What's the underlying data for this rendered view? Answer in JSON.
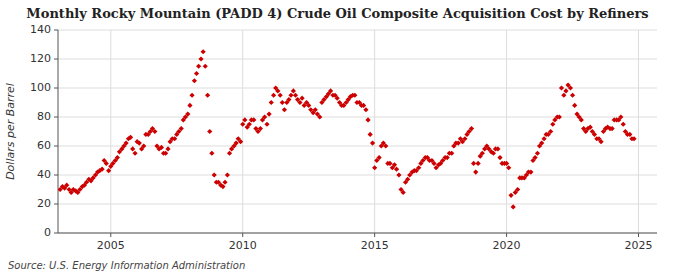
{
  "chart_data": {
    "type": "scatter",
    "title": "Monthly Rocky Mountain (PADD 4) Crude Oil Composite Acquisition Cost by Refiners",
    "ylabel": "Dollars per Barrel",
    "annotations": [
      "Source: U.S. Energy Information Administration"
    ],
    "color": "#CC0000",
    "marker": "diamond",
    "grid": true,
    "xlim": [
      2003.0,
      2025.7
    ],
    "xticks": [
      2005,
      2010,
      2015,
      2020,
      2025
    ],
    "ylim": [
      0,
      140
    ],
    "yticks": [
      0,
      20,
      40,
      60,
      80,
      100,
      120,
      140
    ],
    "x": [
      2003.08,
      2003.17,
      2003.25,
      2003.33,
      2003.42,
      2003.5,
      2003.58,
      2003.67,
      2003.75,
      2003.83,
      2003.92,
      2004.0,
      2004.08,
      2004.17,
      2004.25,
      2004.33,
      2004.42,
      2004.5,
      2004.58,
      2004.67,
      2004.75,
      2004.83,
      2004.92,
      2005.0,
      2005.08,
      2005.17,
      2005.25,
      2005.33,
      2005.42,
      2005.5,
      2005.58,
      2005.67,
      2005.75,
      2005.83,
      2005.92,
      2006.0,
      2006.08,
      2006.17,
      2006.25,
      2006.33,
      2006.42,
      2006.5,
      2006.58,
      2006.67,
      2006.75,
      2006.83,
      2006.92,
      2007.0,
      2007.08,
      2007.17,
      2007.25,
      2007.33,
      2007.42,
      2007.5,
      2007.58,
      2007.67,
      2007.75,
      2007.83,
      2007.92,
      2008.0,
      2008.08,
      2008.17,
      2008.25,
      2008.33,
      2008.42,
      2008.5,
      2008.58,
      2008.67,
      2008.75,
      2008.83,
      2008.92,
      2009.0,
      2009.08,
      2009.17,
      2009.25,
      2009.33,
      2009.42,
      2009.5,
      2009.58,
      2009.67,
      2009.75,
      2009.83,
      2009.92,
      2010.0,
      2010.08,
      2010.17,
      2010.25,
      2010.33,
      2010.42,
      2010.5,
      2010.58,
      2010.67,
      2010.75,
      2010.83,
      2010.92,
      2011.0,
      2011.08,
      2011.17,
      2011.25,
      2011.33,
      2011.42,
      2011.5,
      2011.58,
      2011.67,
      2011.75,
      2011.83,
      2011.92,
      2012.0,
      2012.08,
      2012.17,
      2012.25,
      2012.33,
      2012.42,
      2012.5,
      2012.58,
      2012.67,
      2012.75,
      2012.83,
      2012.92,
      2013.0,
      2013.08,
      2013.17,
      2013.25,
      2013.33,
      2013.42,
      2013.5,
      2013.58,
      2013.67,
      2013.75,
      2013.83,
      2013.92,
      2014.0,
      2014.08,
      2014.17,
      2014.25,
      2014.33,
      2014.42,
      2014.5,
      2014.58,
      2014.67,
      2014.75,
      2014.83,
      2014.92,
      2015.0,
      2015.08,
      2015.17,
      2015.25,
      2015.33,
      2015.42,
      2015.5,
      2015.58,
      2015.67,
      2015.75,
      2015.83,
      2015.92,
      2016.0,
      2016.08,
      2016.17,
      2016.25,
      2016.33,
      2016.42,
      2016.5,
      2016.58,
      2016.67,
      2016.75,
      2016.83,
      2016.92,
      2017.0,
      2017.08,
      2017.17,
      2017.25,
      2017.33,
      2017.42,
      2017.5,
      2017.58,
      2017.67,
      2017.75,
      2017.83,
      2017.92,
      2018.0,
      2018.08,
      2018.17,
      2018.25,
      2018.33,
      2018.42,
      2018.5,
      2018.58,
      2018.67,
      2018.75,
      2018.83,
      2018.92,
      2019.0,
      2019.08,
      2019.17,
      2019.25,
      2019.33,
      2019.42,
      2019.5,
      2019.58,
      2019.67,
      2019.75,
      2019.83,
      2019.92,
      2020.0,
      2020.08,
      2020.17,
      2020.25,
      2020.33,
      2020.42,
      2020.5,
      2020.58,
      2020.67,
      2020.75,
      2020.83,
      2020.92,
      2021.0,
      2021.08,
      2021.17,
      2021.25,
      2021.33,
      2021.42,
      2021.5,
      2021.58,
      2021.67,
      2021.75,
      2021.83,
      2021.92,
      2022.0,
      2022.08,
      2022.17,
      2022.25,
      2022.33,
      2022.42,
      2022.5,
      2022.58,
      2022.67,
      2022.75,
      2022.83,
      2022.92,
      2023.0,
      2023.08,
      2023.17,
      2023.25,
      2023.33,
      2023.42,
      2023.5,
      2023.58,
      2023.67,
      2023.75,
      2023.83,
      2023.92,
      2024.0,
      2024.08,
      2024.17,
      2024.25,
      2024.33,
      2024.42,
      2024.5,
      2024.58,
      2024.67,
      2024.75,
      2024.83
    ],
    "values": [
      30,
      32,
      31,
      33,
      30,
      28,
      30,
      29,
      28,
      30,
      32,
      33,
      35,
      37,
      36,
      38,
      40,
      42,
      43,
      44,
      50,
      48,
      43,
      46,
      48,
      50,
      52,
      56,
      58,
      60,
      62,
      65,
      66,
      58,
      55,
      63,
      62,
      58,
      60,
      68,
      68,
      70,
      72,
      70,
      60,
      58,
      59,
      55,
      55,
      58,
      63,
      65,
      65,
      68,
      70,
      72,
      78,
      80,
      82,
      88,
      95,
      105,
      110,
      115,
      120,
      125,
      115,
      95,
      70,
      55,
      40,
      35,
      35,
      33,
      32,
      35,
      40,
      55,
      58,
      60,
      62,
      65,
      63,
      75,
      78,
      73,
      75,
      78,
      78,
      72,
      70,
      72,
      78,
      80,
      75,
      82,
      90,
      95,
      100,
      98,
      95,
      90,
      85,
      90,
      92,
      95,
      98,
      95,
      92,
      90,
      93,
      88,
      90,
      88,
      85,
      83,
      85,
      82,
      80,
      90,
      92,
      94,
      96,
      98,
      95,
      95,
      93,
      90,
      88,
      88,
      90,
      92,
      94,
      95,
      95,
      90,
      90,
      88,
      88,
      85,
      78,
      68,
      62,
      45,
      50,
      52,
      60,
      62,
      60,
      48,
      48,
      45,
      47,
      44,
      40,
      30,
      28,
      35,
      37,
      40,
      42,
      43,
      43,
      45,
      48,
      50,
      52,
      52,
      50,
      50,
      48,
      45,
      47,
      48,
      50,
      52,
      52,
      55,
      55,
      60,
      62,
      62,
      65,
      63,
      65,
      68,
      70,
      72,
      48,
      42,
      48,
      53,
      55,
      58,
      60,
      58,
      56,
      55,
      58,
      58,
      52,
      48,
      48,
      48,
      45,
      26,
      18,
      28,
      30,
      38,
      38,
      38,
      40,
      42,
      42,
      50,
      52,
      55,
      60,
      62,
      65,
      68,
      68,
      70,
      75,
      78,
      80,
      80,
      100,
      95,
      98,
      102,
      100,
      95,
      88,
      82,
      80,
      78,
      72,
      70,
      72,
      73,
      70,
      68,
      65,
      65,
      63,
      70,
      72,
      73,
      72,
      72,
      78,
      78,
      78,
      80,
      75,
      70,
      68,
      68,
      65,
      65
    ]
  }
}
